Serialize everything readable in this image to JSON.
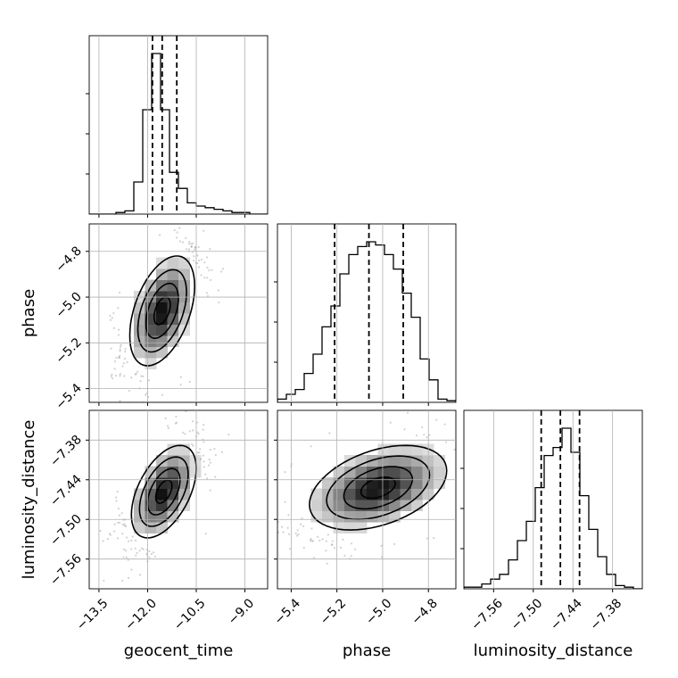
{
  "chart_data": {
    "type": "corner",
    "parameters": [
      "geocent_time",
      "phase",
      "luminosity_distance"
    ],
    "axis_labels": {
      "geocent_time": "geocent_time",
      "phase": "phase",
      "luminosity_distance": "luminosity_distance"
    },
    "ranges": {
      "geocent_time": [
        -13.8,
        -8.3
      ],
      "phase": [
        -5.46,
        -4.68
      ],
      "luminosity_distance": [
        -7.605,
        -7.335
      ]
    },
    "ticks": {
      "geocent_time": [
        {
          "v": -13.5,
          "label": "−13.5"
        },
        {
          "v": -12.0,
          "label": "−12.0"
        },
        {
          "v": -10.5,
          "label": "−10.5"
        },
        {
          "v": -9.0,
          "label": "−9.0"
        }
      ],
      "phase": [
        {
          "v": -5.4,
          "label": "−5.4"
        },
        {
          "v": -5.2,
          "label": "−5.2"
        },
        {
          "v": -5.0,
          "label": "−5.0"
        },
        {
          "v": -4.8,
          "label": "−4.8"
        }
      ],
      "luminosity_distance": [
        {
          "v": -7.56,
          "label": "−7.56"
        },
        {
          "v": -7.5,
          "label": "−7.50"
        },
        {
          "v": -7.44,
          "label": "−7.44"
        },
        {
          "v": -7.38,
          "label": "−7.38"
        }
      ]
    },
    "quantiles": {
      "geocent_time": [
        -11.85,
        -11.55,
        -11.1
      ],
      "phase": [
        -5.21,
        -5.06,
        -4.91
      ],
      "luminosity_distance": [
        -7.488,
        -7.459,
        -7.43
      ]
    },
    "histograms": {
      "geocent_time": {
        "edges": [
          -13.8,
          -13.525,
          -13.25,
          -12.975,
          -12.7,
          -12.425,
          -12.15,
          -11.875,
          -11.6,
          -11.325,
          -11.05,
          -10.775,
          -10.5,
          -10.225,
          -9.95,
          -9.675,
          -9.4,
          -9.125,
          -8.85,
          -8.575,
          -8.3
        ],
        "counts": [
          0,
          0,
          0,
          0.01,
          0.02,
          0.2,
          0.65,
          1.0,
          0.65,
          0.26,
          0.16,
          0.07,
          0.05,
          0.04,
          0.03,
          0.02,
          0.01,
          0.01,
          0,
          0
        ]
      },
      "phase": {
        "edges": [
          -5.46,
          -5.421,
          -5.382,
          -5.343,
          -5.304,
          -5.265,
          -5.226,
          -5.187,
          -5.148,
          -5.109,
          -5.07,
          -5.031,
          -4.992,
          -4.953,
          -4.914,
          -4.875,
          -4.836,
          -4.797,
          -4.758,
          -4.719,
          -4.68
        ],
        "counts": [
          0.02,
          0.05,
          0.08,
          0.18,
          0.3,
          0.47,
          0.6,
          0.8,
          0.92,
          0.97,
          1.0,
          0.98,
          0.92,
          0.83,
          0.68,
          0.53,
          0.27,
          0.14,
          0.02,
          0.01
        ]
      },
      "luminosity_distance": {
        "edges": [
          -7.605,
          -7.5915,
          -7.578,
          -7.5645,
          -7.551,
          -7.5375,
          -7.524,
          -7.5105,
          -7.497,
          -7.4835,
          -7.47,
          -7.4565,
          -7.443,
          -7.4295,
          -7.416,
          -7.4025,
          -7.389,
          -7.3755,
          -7.362,
          -7.3485,
          -7.335
        ],
        "counts": [
          0.01,
          0.01,
          0.03,
          0.06,
          0.09,
          0.18,
          0.3,
          0.42,
          0.63,
          0.83,
          0.88,
          1.0,
          0.85,
          0.58,
          0.37,
          0.2,
          0.09,
          0.02,
          0.01,
          0
        ]
      }
    },
    "hist2d": [
      {
        "x": "geocent_time",
        "y": "phase",
        "mean": [
          -11.55,
          -5.06
        ],
        "sd": [
          0.5,
          0.12
        ],
        "rho": 0.45
      },
      {
        "x": "geocent_time",
        "y": "luminosity_distance",
        "mean": [
          -11.5,
          -7.458
        ],
        "sd": [
          0.5,
          0.035
        ],
        "rho": 0.5
      },
      {
        "x": "phase",
        "y": "luminosity_distance",
        "mean": [
          -5.02,
          -7.452
        ],
        "sd": [
          0.15,
          0.032
        ],
        "rho": 0.4
      }
    ],
    "contour_levels_sigma": [
      0.5,
      1.0,
      1.5,
      2.0
    ],
    "grid": true
  }
}
